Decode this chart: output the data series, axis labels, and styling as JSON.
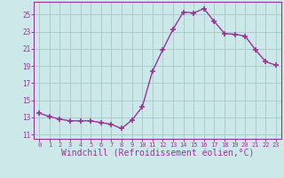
{
  "x": [
    0,
    1,
    2,
    3,
    4,
    5,
    6,
    7,
    8,
    9,
    10,
    11,
    12,
    13,
    14,
    15,
    16,
    17,
    18,
    19,
    20,
    21,
    22,
    23
  ],
  "y": [
    13.5,
    13.1,
    12.8,
    12.6,
    12.6,
    12.6,
    12.4,
    12.2,
    11.7,
    12.7,
    14.2,
    18.4,
    20.9,
    23.3,
    25.3,
    25.2,
    25.7,
    24.2,
    22.8,
    22.7,
    22.5,
    20.9,
    19.5,
    19.1
  ],
  "line_color": "#993399",
  "marker": "+",
  "marker_size": 5,
  "bg_color": "#cce8e8",
  "grid_color": "#aacccc",
  "xlabel": "Windchill (Refroidissement éolien,°C)",
  "xlabel_fontsize": 7,
  "ytick_labels": [
    "11",
    "13",
    "15",
    "17",
    "19",
    "21",
    "23",
    "25"
  ],
  "ytick_values": [
    11,
    13,
    15,
    17,
    19,
    21,
    23,
    25
  ],
  "xlim": [
    -0.5,
    23.5
  ],
  "ylim": [
    10.5,
    26.5
  ],
  "tick_color": "#993399",
  "spine_color": "#993399"
}
